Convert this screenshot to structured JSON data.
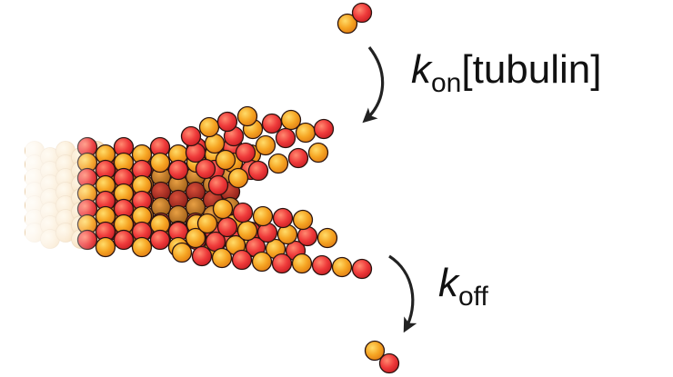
{
  "labels": {
    "kon": {
      "symbol": "k",
      "subscript": "on",
      "suffix": "[tubulin]"
    },
    "koff": {
      "symbol": "k",
      "subscript": "off"
    }
  },
  "colors": {
    "alpha_tubulin": "#ef3b3b",
    "beta_tubulin": "#f6a523",
    "buried_dark": "#a6241c",
    "buried_brown": "#c4761e",
    "outline": "#2a1410",
    "arrow": "#222222"
  }
}
